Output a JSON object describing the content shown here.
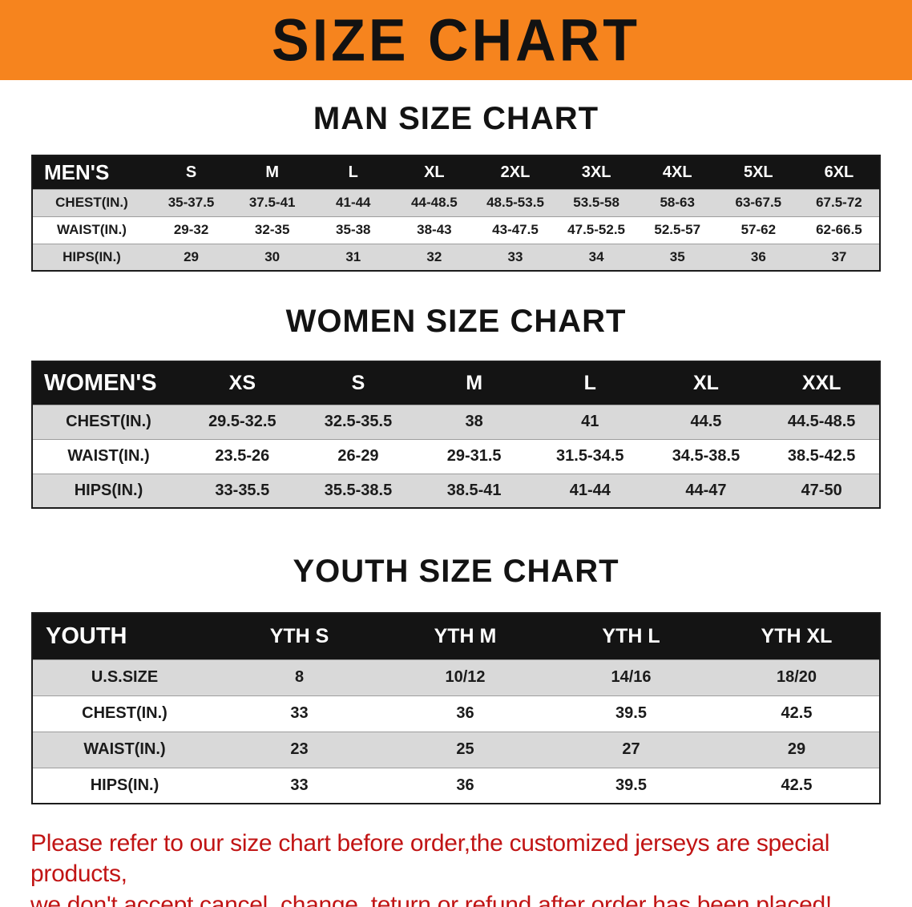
{
  "banner": {
    "title": "SIZE CHART"
  },
  "colors": {
    "banner_bg": "#F6841E",
    "table_header_bg": "#141414",
    "row_gray": "#D9D9D9",
    "disclaimer_red": "#C11414"
  },
  "sections": [
    {
      "id": "men",
      "heading": "MAN SIZE CHART",
      "table": {
        "header": [
          "MEN'S",
          "S",
          "M",
          "L",
          "XL",
          "2XL",
          "3XL",
          "4XL",
          "5XL",
          "6XL"
        ],
        "rows": [
          [
            "CHEST(IN.)",
            "35-37.5",
            "37.5-41",
            "41-44",
            "44-48.5",
            "48.5-53.5",
            "53.5-58",
            "58-63",
            "63-67.5",
            "67.5-72"
          ],
          [
            "WAIST(IN.)",
            "29-32",
            "32-35",
            "35-38",
            "38-43",
            "43-47.5",
            "47.5-52.5",
            "52.5-57",
            "57-62",
            "62-66.5"
          ],
          [
            "HIPS(IN.)",
            "29",
            "30",
            "31",
            "32",
            "33",
            "34",
            "35",
            "36",
            "37"
          ]
        ]
      }
    },
    {
      "id": "women",
      "heading": "WOMEN SIZE CHART",
      "table": {
        "header": [
          "WOMEN'S",
          "XS",
          "S",
          "M",
          "L",
          "XL",
          "XXL"
        ],
        "rows": [
          [
            "CHEST(IN.)",
            "29.5-32.5",
            "32.5-35.5",
            "38",
            "41",
            "44.5",
            "44.5-48.5"
          ],
          [
            "WAIST(IN.)",
            "23.5-26",
            "26-29",
            "29-31.5",
            "31.5-34.5",
            "34.5-38.5",
            "38.5-42.5"
          ],
          [
            "HIPS(IN.)",
            "33-35.5",
            "35.5-38.5",
            "38.5-41",
            "41-44",
            "44-47",
            "47-50"
          ]
        ]
      }
    },
    {
      "id": "youth",
      "heading": "YOUTH SIZE CHART",
      "table": {
        "header": [
          "YOUTH",
          "YTH S",
          "YTH M",
          "YTH L",
          "YTH XL"
        ],
        "rows": [
          [
            "U.S.SIZE",
            "8",
            "10/12",
            "14/16",
            "18/20"
          ],
          [
            "CHEST(IN.)",
            "33",
            "36",
            "39.5",
            "42.5"
          ],
          [
            "WAIST(IN.)",
            "23",
            "25",
            "27",
            "29"
          ],
          [
            "HIPS(IN.)",
            "33",
            "36",
            "39.5",
            "42.5"
          ]
        ]
      }
    }
  ],
  "disclaimer": {
    "line1": "Please refer to our size chart before order,the customized jerseys are special products,",
    "line2": "we don't accept cancel, change, teturn or refund after order has been placed!"
  }
}
